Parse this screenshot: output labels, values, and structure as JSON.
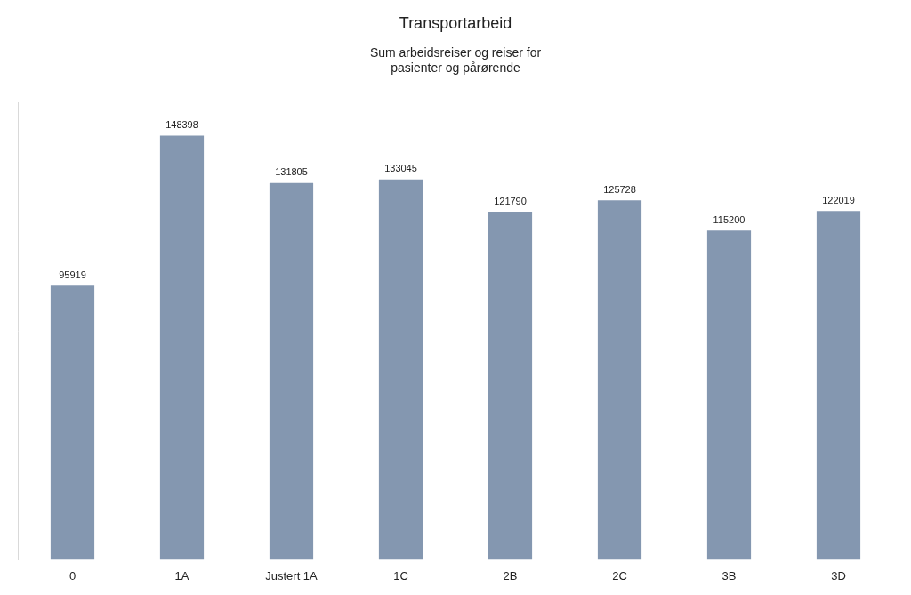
{
  "chart_data": {
    "type": "bar",
    "title": "Transportarbeid",
    "subtitle": [
      "Sum arbeidsreiser og reiser for",
      "pasienter og pårørende"
    ],
    "categories": [
      "0",
      "1A",
      "Justert 1A",
      "1C",
      "2B",
      "2C",
      "3B",
      "3D"
    ],
    "values": [
      95919,
      148398,
      131805,
      133045,
      121790,
      125728,
      115200,
      122019
    ],
    "color": "#8497b0",
    "ylim": [
      0,
      160000
    ],
    "grid": false,
    "data_labels": true,
    "tick_labels": "x"
  }
}
